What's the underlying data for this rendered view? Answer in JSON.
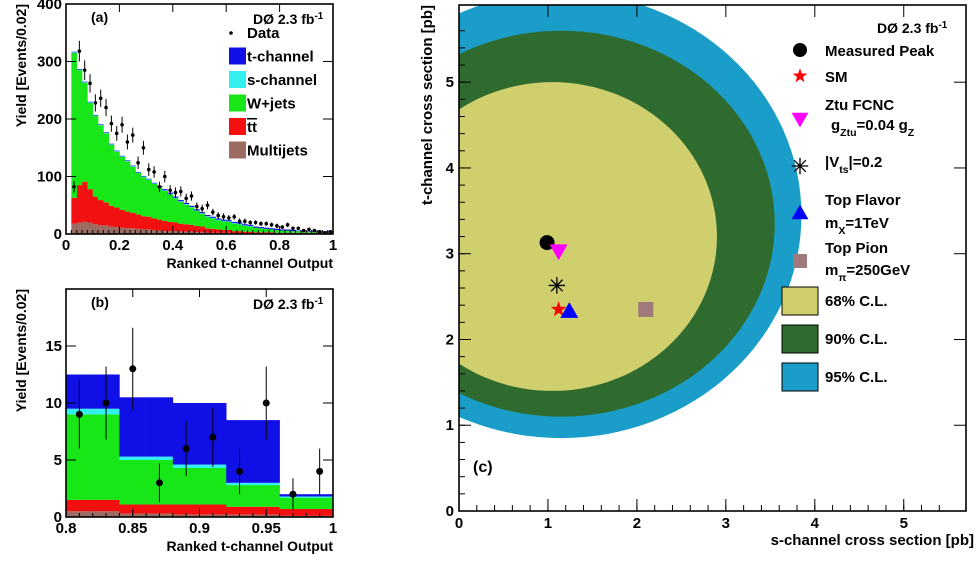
{
  "chart_data": [
    {
      "panel": "(a)",
      "type": "bar",
      "stacked": true,
      "experiment": "DØ 2.3 fb",
      "luminosity_sup": "-1",
      "xlabel": "Ranked t-channel Output",
      "ylabel": "Yield [Events/0.02]",
      "xlim": [
        0,
        1
      ],
      "ylim": [
        0,
        400
      ],
      "xticks": [
        "0",
        "0.2",
        "0.4",
        "0.6",
        "0.8",
        "1"
      ],
      "yticks": [
        "0",
        "100",
        "200",
        "300",
        "400"
      ],
      "legend": [
        {
          "label": "Data",
          "kind": "marker",
          "color": "#000000"
        },
        {
          "label": "t-channel",
          "kind": "box",
          "color": "#1010e6"
        },
        {
          "label": "s-channel",
          "kind": "box",
          "color": "#33f0f0"
        },
        {
          "label": "W+jets",
          "kind": "box",
          "color": "#17e617"
        },
        {
          "label": "tt",
          "kind": "box",
          "color": "#f21010",
          "overline": true
        },
        {
          "label": "Multijets",
          "kind": "box",
          "color": "#9c6b62"
        }
      ],
      "bin_edges": [
        0.02,
        1.0
      ],
      "series": [
        {
          "name": "Multijets",
          "color": "#9c6b62",
          "values": [
            18,
            20,
            21,
            20,
            17,
            15,
            15,
            13,
            12,
            11,
            10,
            10,
            9,
            8,
            8,
            7,
            6,
            5,
            5,
            5,
            4,
            4,
            4,
            3,
            3,
            2,
            2,
            2,
            2,
            2,
            1,
            1,
            1,
            1,
            1,
            1,
            1,
            1,
            1,
            1,
            1,
            1,
            1,
            1,
            1,
            1,
            1,
            1,
            1
          ]
        },
        {
          "name": "tt",
          "color": "#f21010",
          "values": [
            45,
            65,
            70,
            58,
            48,
            44,
            40,
            36,
            34,
            31,
            29,
            27,
            25,
            23,
            22,
            20,
            19,
            18,
            16,
            15,
            14,
            13,
            12,
            11,
            10,
            8,
            7,
            6,
            5,
            5,
            4,
            4,
            3,
            3,
            2,
            2,
            2,
            2,
            1,
            1,
            1,
            1,
            1,
            1,
            1,
            1,
            1,
            1,
            1
          ]
        },
        {
          "name": "W+jets",
          "color": "#17e617",
          "values": [
            252,
            200,
            172,
            150,
            140,
            130,
            120,
            106,
            97,
            92,
            87,
            80,
            72,
            68,
            64,
            60,
            56,
            52,
            48,
            42,
            38,
            34,
            30,
            26,
            22,
            20,
            18,
            16,
            15,
            14,
            13,
            12,
            10,
            9,
            8,
            7,
            6,
            5,
            5,
            4,
            4,
            3,
            3,
            3,
            2,
            2,
            2,
            2,
            2
          ]
        },
        {
          "name": "s-channel",
          "color": "#33f0f0",
          "values": [
            1,
            1,
            1,
            1,
            1,
            1,
            1,
            1,
            1,
            1,
            1,
            1,
            1,
            1,
            1,
            1,
            1,
            1,
            1,
            1,
            1,
            1,
            1,
            1,
            1,
            1,
            1,
            1,
            1,
            1,
            1,
            1,
            1,
            1,
            0,
            0,
            0,
            0,
            0,
            0,
            0,
            0,
            0,
            0,
            0,
            0,
            0,
            0,
            0
          ]
        },
        {
          "name": "t-channel",
          "color": "#1010e6",
          "values": [
            1,
            1,
            1,
            1,
            1,
            1,
            1,
            1,
            1,
            1,
            1,
            1,
            1,
            1,
            1,
            1,
            2,
            2,
            2,
            2,
            2,
            2,
            2,
            2,
            2,
            2,
            2,
            2,
            2,
            2,
            2,
            2,
            2,
            2,
            2,
            2,
            2,
            2,
            2,
            2,
            2,
            2,
            1,
            1,
            1,
            1,
            1,
            1,
            1
          ]
        }
      ],
      "data_points": {
        "x": [
          0.03,
          0.05,
          0.07,
          0.09,
          0.11,
          0.13,
          0.15,
          0.17,
          0.19,
          0.21,
          0.23,
          0.25,
          0.27,
          0.29,
          0.31,
          0.33,
          0.35,
          0.37,
          0.39,
          0.41,
          0.43,
          0.45,
          0.47,
          0.49,
          0.51,
          0.53,
          0.55,
          0.57,
          0.59,
          0.61,
          0.63,
          0.65,
          0.67,
          0.69,
          0.71,
          0.73,
          0.75,
          0.77,
          0.79,
          0.81,
          0.83,
          0.85,
          0.87,
          0.89,
          0.91,
          0.93,
          0.95,
          0.97,
          0.99
        ],
        "y": [
          82,
          318,
          285,
          262,
          228,
          236,
          220,
          192,
          175,
          190,
          160,
          172,
          124,
          150,
          112,
          108,
          82,
          100,
          76,
          72,
          74,
          62,
          66,
          48,
          44,
          50,
          38,
          32,
          30,
          28,
          30,
          22,
          22,
          20,
          20,
          18,
          18,
          16,
          14,
          12,
          16,
          10,
          10,
          6,
          8,
          6,
          4,
          2,
          4
        ],
        "err": [
          10,
          18,
          17,
          16,
          15,
          15,
          15,
          14,
          13,
          14,
          13,
          13,
          11,
          12,
          11,
          10,
          9,
          10,
          9,
          9,
          9,
          8,
          8,
          7,
          7,
          7,
          6,
          6,
          6,
          5,
          5,
          5,
          5,
          4,
          4,
          4,
          4,
          4,
          4,
          3,
          4,
          3,
          3,
          2,
          3,
          2,
          2,
          1,
          2
        ]
      }
    },
    {
      "panel": "(b)",
      "type": "bar",
      "stacked": true,
      "experiment": "DØ 2.3 fb",
      "luminosity_sup": "-1",
      "xlabel": "Ranked t-channel Output",
      "ylabel": "Yield [Events/0.02]",
      "xlim": [
        0.8,
        1.0
      ],
      "ylim": [
        0,
        20
      ],
      "xticks": [
        "0.8",
        "0.85",
        "0.9",
        "0.95",
        "1"
      ],
      "xtick_values": [
        0.8,
        0.85,
        0.9,
        0.95,
        1.0
      ],
      "yticks": [
        "0",
        "5",
        "10",
        "15"
      ],
      "ytick_values": [
        0,
        5,
        10,
        15
      ],
      "bin_edges": [
        0.8,
        0.82,
        0.84,
        0.86,
        0.88,
        0.9,
        0.92,
        0.94,
        0.96,
        0.98,
        1.0
      ],
      "series": [
        {
          "name": "Multijets",
          "color": "#9c6b62",
          "values": [
            0.5,
            0.5,
            0.3,
            0.3,
            0.2,
            0.2,
            0.2,
            0.2,
            0.1,
            0.1
          ]
        },
        {
          "name": "tt",
          "color": "#f21010",
          "values": [
            1.0,
            1.0,
            0.8,
            0.8,
            0.9,
            0.9,
            0.7,
            0.7,
            0.6,
            0.6
          ]
        },
        {
          "name": "W+jets",
          "color": "#17e617",
          "values": [
            7.5,
            7.5,
            3.9,
            3.9,
            3.2,
            3.2,
            1.9,
            1.9,
            1.0,
            1.0
          ]
        },
        {
          "name": "s-channel",
          "color": "#33f0f0",
          "values": [
            0.5,
            0.5,
            0.3,
            0.3,
            0.3,
            0.3,
            0.2,
            0.2,
            0.1,
            0.1
          ]
        },
        {
          "name": "t-channel",
          "color": "#1010e6",
          "values": [
            3.0,
            3.0,
            5.2,
            5.2,
            5.4,
            5.4,
            5.5,
            5.5,
            0.2,
            0.2
          ]
        }
      ],
      "data_points": {
        "x": [
          0.81,
          0.83,
          0.85,
          0.87,
          0.89,
          0.91,
          0.93,
          0.95,
          0.97,
          0.99
        ],
        "y": [
          9,
          10,
          13,
          3,
          6,
          7,
          4,
          10,
          2,
          4
        ],
        "err": [
          3.0,
          3.2,
          3.6,
          1.7,
          2.4,
          2.6,
          2.0,
          3.2,
          1.4,
          2.0
        ]
      }
    },
    {
      "panel": "(c)",
      "type": "scatter",
      "experiment": "DØ 2.3 fb",
      "luminosity_sup": "-1",
      "xlabel": "s-channel cross section [pb]",
      "ylabel": "t-channel cross section [pb]",
      "xlim": [
        0,
        5.7
      ],
      "ylim": [
        0,
        5.9
      ],
      "xticks": [
        "0",
        "1",
        "2",
        "3",
        "4",
        "5"
      ],
      "yticks": [
        "0",
        "1",
        "2",
        "3",
        "4",
        "5"
      ],
      "contours": [
        {
          "label": "95% C.L.",
          "color": "#1a9ec9",
          "cx": 1.15,
          "cy": 3.45,
          "rx": 2.7,
          "ry": 2.6
        },
        {
          "label": "90% C.L.",
          "color": "#2f6b2f",
          "cx": 1.15,
          "cy": 3.35,
          "rx": 2.4,
          "ry": 2.25
        },
        {
          "label": "68% C.L.",
          "color": "#cfcf6e",
          "cx": 1.05,
          "cy": 3.2,
          "rx": 1.85,
          "ry": 1.8
        }
      ],
      "points": [
        {
          "label": "Measured Peak",
          "symbol": "circle",
          "color": "#000000",
          "x": 0.99,
          "y": 3.13
        },
        {
          "label": "SM",
          "symbol": "star",
          "color": "#ff0000",
          "x": 1.12,
          "y": 2.35
        },
        {
          "label": "Ztu FCNC",
          "label2_pre": "g",
          "label2_sub": "Ztu",
          "label2_mid": "=0.04 g",
          "label2_sub2": "Z",
          "symbol": "triangle-down",
          "color": "#ff00ff",
          "x": 1.12,
          "y": 3.03
        },
        {
          "label": "|V",
          "label_sub": "ts",
          "label_post": "|=0.2",
          "symbol": "asterisk",
          "color": "#000000",
          "x": 1.1,
          "y": 2.63
        },
        {
          "label": "Top Flavor",
          "label2_pre": "m",
          "label2_sub": "X",
          "label2_mid": "=1TeV",
          "symbol": "triangle-up",
          "color": "#0000ff",
          "x": 1.24,
          "y": 2.33
        },
        {
          "label": "Top Pion",
          "label2_pre": "m",
          "label2_sub": "π",
          "label2_mid": "=250GeV",
          "symbol": "square",
          "color": "#a07a7a",
          "x": 2.1,
          "y": 2.35
        }
      ],
      "panel_label": "(c)"
    }
  ]
}
